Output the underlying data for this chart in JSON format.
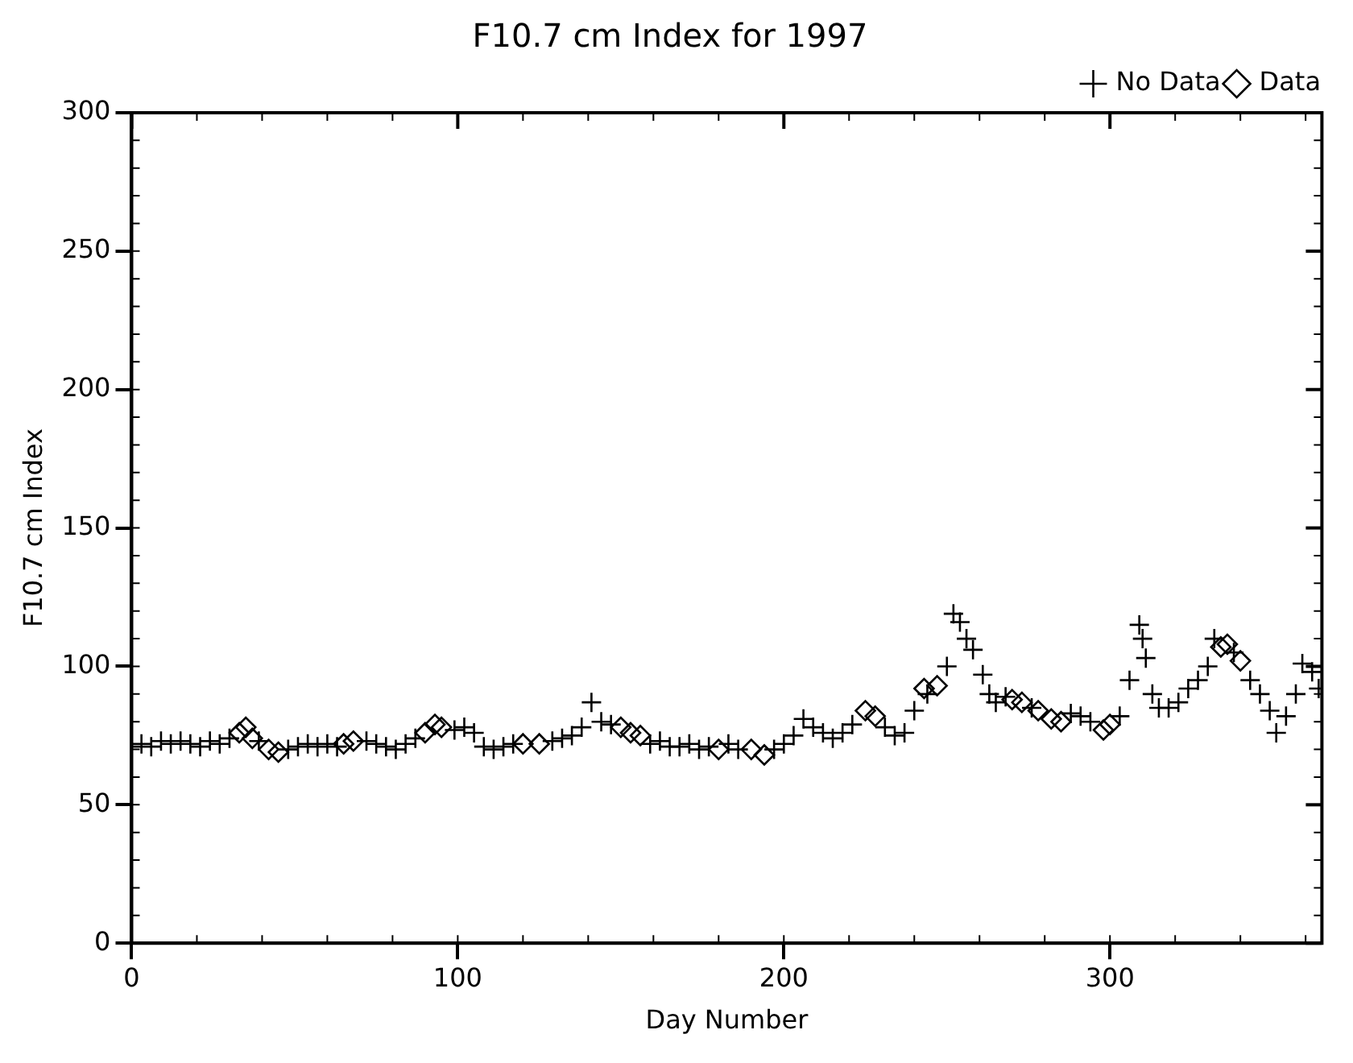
{
  "chart_data": {
    "type": "scatter",
    "title": "F10.7 cm Index for 1997",
    "xlabel": "Day Number",
    "ylabel": "F10.7 cm Index",
    "xlim": [
      0,
      365
    ],
    "xticks": [
      0,
      100,
      200,
      300
    ],
    "ylim": [
      0,
      300
    ],
    "yticks": [
      0,
      50,
      100,
      150,
      200,
      250,
      300
    ],
    "grid": false,
    "legend": "top right",
    "series": [
      {
        "name": "No Data",
        "color": "#000000",
        "marker": "cross",
        "x": [
          0,
          3,
          6,
          9,
          12,
          15,
          18,
          21,
          24,
          27,
          30,
          39,
          48,
          51,
          54,
          57,
          60,
          63,
          72,
          75,
          78,
          81,
          84,
          87,
          99,
          102,
          105,
          108,
          111,
          114,
          117,
          129,
          132,
          135,
          138,
          141,
          144,
          147,
          159,
          162,
          165,
          168,
          171,
          174,
          177,
          183,
          186,
          197,
          200,
          203,
          206,
          209,
          212,
          215,
          218,
          221,
          231,
          234,
          237,
          240,
          244,
          250,
          252,
          254,
          256,
          258,
          261,
          263,
          265,
          268,
          276,
          288,
          291,
          294,
          303,
          306,
          309,
          310,
          311,
          313,
          315,
          318,
          321,
          324,
          327,
          330,
          332,
          338,
          343,
          346,
          349,
          351,
          354,
          357,
          359,
          362,
          364
        ],
        "values": [
          71,
          72,
          71,
          73,
          72,
          73,
          72,
          71,
          73,
          72,
          74,
          73,
          70,
          71,
          72,
          71,
          72,
          71,
          73,
          72,
          71,
          70,
          72,
          74,
          77,
          78,
          76,
          71,
          70,
          71,
          72,
          73,
          74,
          75,
          78,
          87,
          80,
          79,
          72,
          73,
          71,
          71,
          72,
          70,
          71,
          72,
          70,
          70,
          72,
          75,
          81,
          78,
          76,
          74,
          76,
          79,
          78,
          75,
          76,
          84,
          90,
          100,
          119,
          116,
          110,
          106,
          97,
          90,
          87,
          89,
          85,
          83,
          82,
          80,
          82,
          95,
          115,
          110,
          103,
          90,
          85,
          85,
          87,
          92,
          95,
          100,
          110,
          105,
          95,
          90,
          84,
          76,
          82,
          90,
          101,
          98,
          92
        ]
      },
      {
        "name": "Data",
        "color": "#000000",
        "marker": "diamond",
        "x": [
          33,
          35,
          37,
          42,
          45,
          65,
          68,
          90,
          93,
          95,
          120,
          125,
          150,
          153,
          156,
          180,
          190,
          194,
          225,
          228,
          243,
          247,
          270,
          273,
          278,
          282,
          285,
          298,
          300,
          334,
          336,
          340
        ],
        "values": [
          76,
          78,
          74,
          70,
          69,
          72,
          73,
          76,
          79,
          78,
          72,
          72,
          78,
          76,
          75,
          70,
          70,
          68,
          84,
          82,
          92,
          93,
          88,
          87,
          84,
          81,
          80,
          77,
          79,
          107,
          108,
          102
        ]
      }
    ]
  }
}
